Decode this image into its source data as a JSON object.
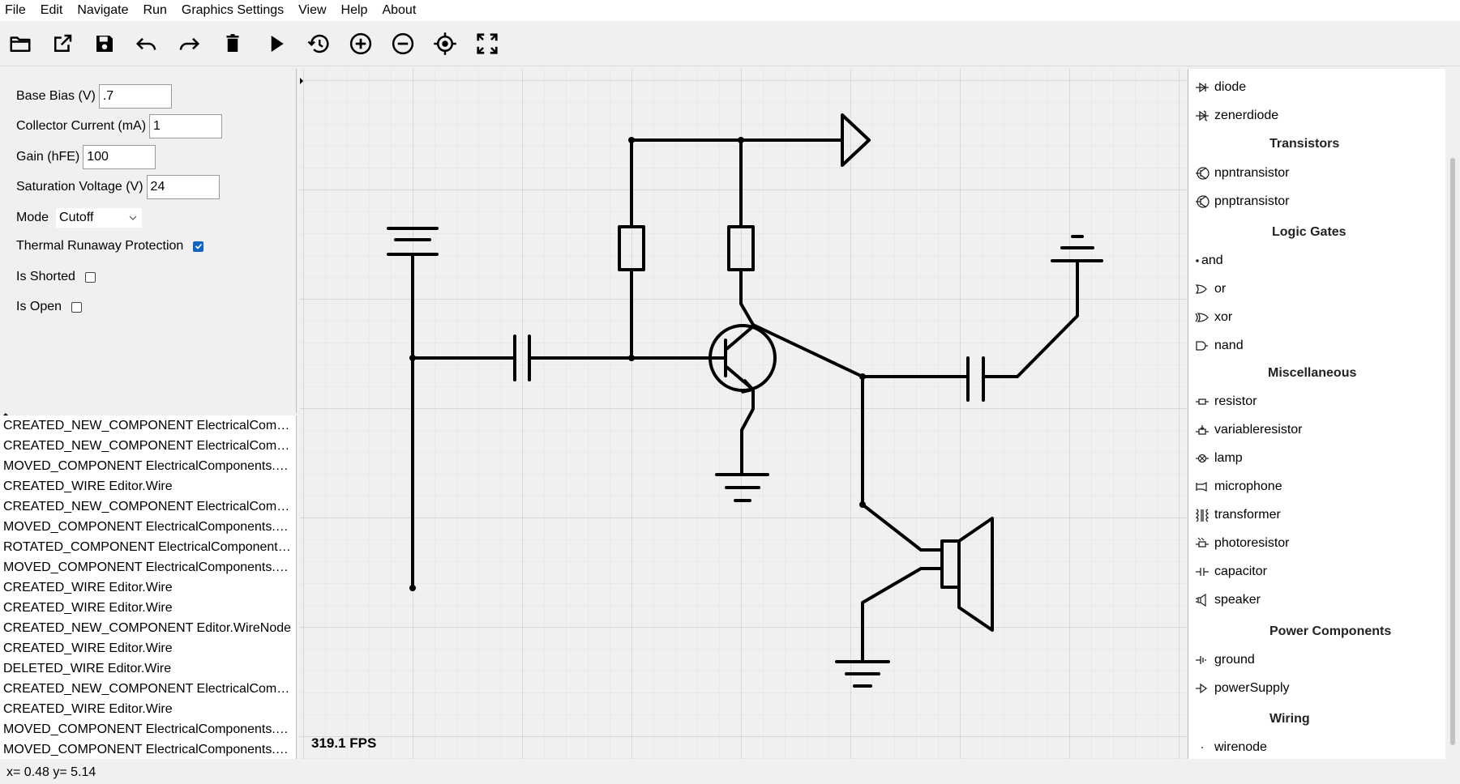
{
  "menubar": [
    "File",
    "Edit",
    "Navigate",
    "Run",
    "Graphics Settings",
    "View",
    "Help",
    "About"
  ],
  "toolbar": {
    "buttons": [
      "open-folder",
      "export",
      "save",
      "undo",
      "redo",
      "delete",
      "run",
      "history",
      "zoom-in",
      "zoom-out",
      "recenter",
      "fullscreen"
    ]
  },
  "properties": {
    "base_bias": {
      "label": "Base Bias (V)",
      "value": ".7"
    },
    "collector_current": {
      "label": "Collector Current (mA)",
      "value": "1"
    },
    "gain": {
      "label": "Gain (hFE)",
      "value": "100"
    },
    "saturation_voltage": {
      "label": "Saturation Voltage (V)",
      "value": "24"
    },
    "mode": {
      "label": "Mode",
      "value": "Cutoff"
    },
    "thermal_runaway": {
      "label": "Thermal Runaway Protection",
      "checked": true
    },
    "is_shorted": {
      "label": "Is Shorted",
      "checked": false
    },
    "is_open": {
      "label": "Is Open",
      "checked": false
    }
  },
  "log": [
    "CREATED_NEW_COMPONENT ElectricalComponents.Phot...",
    "CREATED_NEW_COMPONENT ElectricalComponents.Spe...",
    "MOVED_COMPONENT ElectricalComponents.Photores...",
    "CREATED_WIRE Editor.Wire",
    "CREATED_NEW_COMPONENT ElectricalComponents.Mic...",
    "MOVED_COMPONENT ElectricalComponents.Microphone",
    "ROTATED_COMPONENT ElectricalComponents.Ground",
    "MOVED_COMPONENT ElectricalComponents.Ground",
    "CREATED_WIRE Editor.Wire",
    "CREATED_WIRE Editor.Wire",
    "CREATED_NEW_COMPONENT Editor.WireNode",
    "CREATED_WIRE Editor.Wire",
    "DELETED_WIRE Editor.Wire",
    "CREATED_NEW_COMPONENT ElectricalComponents.Tra...",
    "CREATED_WIRE Editor.Wire",
    "MOVED_COMPONENT ElectricalComponents.Photores...",
    "MOVED_COMPONENT ElectricalComponents.Photores..."
  ],
  "canvas": {
    "fps": "319.1 FPS"
  },
  "palette": {
    "items_top": [
      {
        "label": "diode",
        "icon": "diode-icon"
      },
      {
        "label": "zenerdiode",
        "icon": "zenerdiode-icon"
      }
    ],
    "transistors_title": "Transistors",
    "transistors": [
      {
        "label": "npntransistor",
        "icon": "npn-icon"
      },
      {
        "label": "pnptransistor",
        "icon": "pnp-icon"
      }
    ],
    "logic_title": "Logic Gates",
    "logic": [
      {
        "label": "and",
        "icon": "and-gate-icon"
      },
      {
        "label": "or",
        "icon": "or-gate-icon"
      },
      {
        "label": "xor",
        "icon": "xor-gate-icon"
      },
      {
        "label": "nand",
        "icon": "nand-gate-icon"
      }
    ],
    "misc_title": "Miscellaneous",
    "misc": [
      {
        "label": "resistor",
        "icon": "resistor-icon"
      },
      {
        "label": "variableresistor",
        "icon": "variableresistor-icon"
      },
      {
        "label": "lamp",
        "icon": "lamp-icon"
      },
      {
        "label": "microphone",
        "icon": "microphone-icon"
      },
      {
        "label": "transformer",
        "icon": "transformer-icon"
      },
      {
        "label": "photoresistor",
        "icon": "photoresistor-icon"
      },
      {
        "label": "capacitor",
        "icon": "capacitor-icon"
      },
      {
        "label": "speaker",
        "icon": "speaker-icon"
      }
    ],
    "power_title": "Power Components",
    "power": [
      {
        "label": "ground",
        "icon": "ground-icon"
      },
      {
        "label": "powerSupply",
        "icon": "powersupply-icon"
      }
    ],
    "wiring_title": "Wiring",
    "wiring": [
      {
        "label": "wirenode",
        "icon": "wirenode-icon"
      }
    ]
  },
  "status": {
    "coords": "x= 0.48 y= 5.14"
  }
}
